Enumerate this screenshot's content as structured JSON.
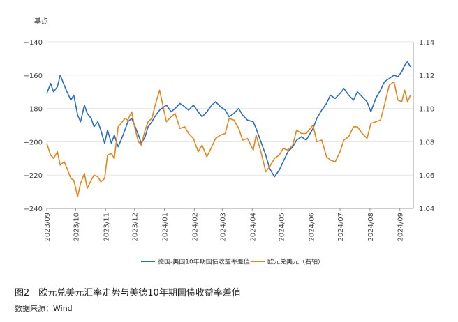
{
  "figure": {
    "caption": "图2　欧元兑美元汇率走势与美德10年期国债收益率差值",
    "source": "数据来源：Wind"
  },
  "chart_data": {
    "type": "line",
    "unit_label": "基点",
    "x_labels": [
      "2023/09",
      "2023/10",
      "2023/11",
      "2023/12",
      "2024/01",
      "2024/02",
      "2024/03",
      "2024/04",
      "2024/05",
      "2024/06",
      "2024/07",
      "2024/08",
      "2024/09"
    ],
    "xlim": [
      "2023-09-01",
      "2024-09-15"
    ],
    "y_left": {
      "ticks": [
        "−140",
        "−160",
        "−180",
        "−200",
        "−220",
        "−240"
      ],
      "range": [
        -240,
        -140
      ]
    },
    "y_right": {
      "ticks": [
        "1.14",
        "1.12",
        "1.10",
        "1.08",
        "1.06",
        "1.04"
      ],
      "range": [
        1.04,
        1.14
      ]
    },
    "grid": true,
    "legend_position": "bottom",
    "series": [
      {
        "name": "德国-美国10年期国债收益率差值",
        "axis": "left",
        "color": "#2b6cc4",
        "points": [
          [
            "2023-09-01",
            -171
          ],
          [
            "2023-09-05",
            -165
          ],
          [
            "2023-09-08",
            -170
          ],
          [
            "2023-09-12",
            -167
          ],
          [
            "2023-09-15",
            -160
          ],
          [
            "2023-09-19",
            -166
          ],
          [
            "2023-09-22",
            -170
          ],
          [
            "2023-09-26",
            -175
          ],
          [
            "2023-09-29",
            -172
          ],
          [
            "2023-10-03",
            -184
          ],
          [
            "2023-10-06",
            -188
          ],
          [
            "2023-10-10",
            -178
          ],
          [
            "2023-10-13",
            -183
          ],
          [
            "2023-10-17",
            -186
          ],
          [
            "2023-10-20",
            -191
          ],
          [
            "2023-10-24",
            -188
          ],
          [
            "2023-10-27",
            -193
          ],
          [
            "2023-10-31",
            -201
          ],
          [
            "2023-11-03",
            -193
          ],
          [
            "2023-11-07",
            -201
          ],
          [
            "2023-11-10",
            -196
          ],
          [
            "2023-11-14",
            -203
          ],
          [
            "2023-11-17",
            -199
          ],
          [
            "2023-11-21",
            -193
          ],
          [
            "2023-11-24",
            -188
          ],
          [
            "2023-11-28",
            -186
          ],
          [
            "2023-12-01",
            -190
          ],
          [
            "2023-12-05",
            -196
          ],
          [
            "2023-12-08",
            -201
          ],
          [
            "2023-12-12",
            -197
          ],
          [
            "2023-12-15",
            -191
          ],
          [
            "2023-12-19",
            -188
          ],
          [
            "2023-12-22",
            -185
          ],
          [
            "2023-12-27",
            -181
          ],
          [
            "2024-01-03",
            -178
          ],
          [
            "2024-01-08",
            -182
          ],
          [
            "2024-01-12",
            -180
          ],
          [
            "2024-01-17",
            -177
          ],
          [
            "2024-01-22",
            -179
          ],
          [
            "2024-01-26",
            -181
          ],
          [
            "2024-01-31",
            -178
          ],
          [
            "2024-02-05",
            -182
          ],
          [
            "2024-02-09",
            -185
          ],
          [
            "2024-02-14",
            -182
          ],
          [
            "2024-02-19",
            -178
          ],
          [
            "2024-02-23",
            -176
          ],
          [
            "2024-02-28",
            -179
          ],
          [
            "2024-03-04",
            -181
          ],
          [
            "2024-03-08",
            -185
          ],
          [
            "2024-03-13",
            -183
          ],
          [
            "2024-03-18",
            -180
          ],
          [
            "2024-03-22",
            -184
          ],
          [
            "2024-03-27",
            -187
          ],
          [
            "2024-04-02",
            -188
          ],
          [
            "2024-04-05",
            -192
          ],
          [
            "2024-04-10",
            -200
          ],
          [
            "2024-04-15",
            -208
          ],
          [
            "2024-04-19",
            -216
          ],
          [
            "2024-04-24",
            -221
          ],
          [
            "2024-04-29",
            -217
          ],
          [
            "2024-05-03",
            -212
          ],
          [
            "2024-05-08",
            -206
          ],
          [
            "2024-05-13",
            -203
          ],
          [
            "2024-05-17",
            -199
          ],
          [
            "2024-05-22",
            -197
          ],
          [
            "2024-05-27",
            -199
          ],
          [
            "2024-06-03",
            -192
          ],
          [
            "2024-06-07",
            -186
          ],
          [
            "2024-06-12",
            -181
          ],
          [
            "2024-06-17",
            -177
          ],
          [
            "2024-06-21",
            -172
          ],
          [
            "2024-06-26",
            -174
          ],
          [
            "2024-07-01",
            -171
          ],
          [
            "2024-07-05",
            -168
          ],
          [
            "2024-07-10",
            -172
          ],
          [
            "2024-07-15",
            -175
          ],
          [
            "2024-07-19",
            -170
          ],
          [
            "2024-07-24",
            -173
          ],
          [
            "2024-07-29",
            -176
          ],
          [
            "2024-08-02",
            -182
          ],
          [
            "2024-08-07",
            -174
          ],
          [
            "2024-08-12",
            -169
          ],
          [
            "2024-08-16",
            -164
          ],
          [
            "2024-08-21",
            -162
          ],
          [
            "2024-08-26",
            -160
          ],
          [
            "2024-08-30",
            -161
          ],
          [
            "2024-09-03",
            -158
          ],
          [
            "2024-09-06",
            -154
          ],
          [
            "2024-09-09",
            -152
          ],
          [
            "2024-09-12",
            -155
          ]
        ]
      },
      {
        "name": "欧元兑美元（右轴）",
        "axis": "right",
        "color": "#e8841a",
        "points": [
          [
            "2023-09-01",
            1.079
          ],
          [
            "2023-09-05",
            1.072
          ],
          [
            "2023-09-08",
            1.07
          ],
          [
            "2023-09-12",
            1.074
          ],
          [
            "2023-09-15",
            1.066
          ],
          [
            "2023-09-19",
            1.068
          ],
          [
            "2023-09-22",
            1.064
          ],
          [
            "2023-09-26",
            1.058
          ],
          [
            "2023-09-29",
            1.057
          ],
          [
            "2023-10-03",
            1.047
          ],
          [
            "2023-10-06",
            1.055
          ],
          [
            "2023-10-10",
            1.061
          ],
          [
            "2023-10-13",
            1.052
          ],
          [
            "2023-10-17",
            1.057
          ],
          [
            "2023-10-20",
            1.06
          ],
          [
            "2023-10-24",
            1.059
          ],
          [
            "2023-10-27",
            1.056
          ],
          [
            "2023-10-31",
            1.058
          ],
          [
            "2023-11-03",
            1.072
          ],
          [
            "2023-11-07",
            1.073
          ],
          [
            "2023-11-10",
            1.07
          ],
          [
            "2023-11-14",
            1.089
          ],
          [
            "2023-11-17",
            1.091
          ],
          [
            "2023-11-21",
            1.094
          ],
          [
            "2023-11-24",
            1.093
          ],
          [
            "2023-11-28",
            1.098
          ],
          [
            "2023-12-01",
            1.089
          ],
          [
            "2023-12-05",
            1.08
          ],
          [
            "2023-12-08",
            1.078
          ],
          [
            "2023-12-12",
            1.087
          ],
          [
            "2023-12-15",
            1.092
          ],
          [
            "2023-12-19",
            1.094
          ],
          [
            "2023-12-22",
            1.101
          ],
          [
            "2023-12-27",
            1.111
          ],
          [
            "2024-01-03",
            1.092
          ],
          [
            "2024-01-08",
            1.095
          ],
          [
            "2024-01-12",
            1.097
          ],
          [
            "2024-01-17",
            1.088
          ],
          [
            "2024-01-22",
            1.089
          ],
          [
            "2024-01-26",
            1.085
          ],
          [
            "2024-01-31",
            1.082
          ],
          [
            "2024-02-05",
            1.074
          ],
          [
            "2024-02-09",
            1.078
          ],
          [
            "2024-02-14",
            1.071
          ],
          [
            "2024-02-19",
            1.077
          ],
          [
            "2024-02-23",
            1.082
          ],
          [
            "2024-02-28",
            1.084
          ],
          [
            "2024-03-04",
            1.085
          ],
          [
            "2024-03-08",
            1.094
          ],
          [
            "2024-03-13",
            1.093
          ],
          [
            "2024-03-18",
            1.088
          ],
          [
            "2024-03-22",
            1.081
          ],
          [
            "2024-03-27",
            1.082
          ],
          [
            "2024-04-02",
            1.075
          ],
          [
            "2024-04-05",
            1.084
          ],
          [
            "2024-04-10",
            1.074
          ],
          [
            "2024-04-15",
            1.062
          ],
          [
            "2024-04-19",
            1.065
          ],
          [
            "2024-04-24",
            1.07
          ],
          [
            "2024-04-29",
            1.072
          ],
          [
            "2024-05-03",
            1.076
          ],
          [
            "2024-05-08",
            1.075
          ],
          [
            "2024-05-13",
            1.078
          ],
          [
            "2024-05-17",
            1.087
          ],
          [
            "2024-05-22",
            1.085
          ],
          [
            "2024-05-27",
            1.085
          ],
          [
            "2024-06-03",
            1.09
          ],
          [
            "2024-06-07",
            1.08
          ],
          [
            "2024-06-12",
            1.081
          ],
          [
            "2024-06-17",
            1.071
          ],
          [
            "2024-06-21",
            1.069
          ],
          [
            "2024-06-26",
            1.068
          ],
          [
            "2024-07-01",
            1.074
          ],
          [
            "2024-07-05",
            1.081
          ],
          [
            "2024-07-10",
            1.083
          ],
          [
            "2024-07-15",
            1.089
          ],
          [
            "2024-07-19",
            1.089
          ],
          [
            "2024-07-24",
            1.085
          ],
          [
            "2024-07-29",
            1.082
          ],
          [
            "2024-08-02",
            1.091
          ],
          [
            "2024-08-07",
            1.092
          ],
          [
            "2024-08-12",
            1.093
          ],
          [
            "2024-08-16",
            1.102
          ],
          [
            "2024-08-21",
            1.114
          ],
          [
            "2024-08-26",
            1.116
          ],
          [
            "2024-08-30",
            1.105
          ],
          [
            "2024-09-03",
            1.104
          ],
          [
            "2024-09-06",
            1.111
          ],
          [
            "2024-09-09",
            1.104
          ],
          [
            "2024-09-12",
            1.108
          ]
        ]
      }
    ]
  }
}
